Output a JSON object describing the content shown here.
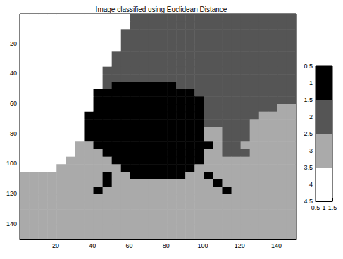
{
  "chart_data": {
    "type": "heatmap",
    "title": "Image classified using Euclidean Distance",
    "x": [
      3,
      8,
      13,
      18,
      23,
      28,
      33,
      38,
      43,
      48,
      53,
      58,
      63,
      68,
      73,
      78,
      83,
      88,
      93,
      98,
      103,
      108,
      113,
      118,
      123,
      128,
      133,
      138,
      143,
      148
    ],
    "y": [
      3,
      8,
      13,
      18,
      23,
      28,
      33,
      38,
      43,
      48,
      53,
      58,
      63,
      68,
      73,
      78,
      83,
      88,
      93,
      98,
      103,
      108,
      113,
      118,
      123,
      128,
      133,
      138,
      143,
      148
    ],
    "xlim": [
      0.5,
      150.5
    ],
    "xticks": [
      20,
      40,
      60,
      80,
      100,
      120,
      140
    ],
    "ylim": [
      0.5,
      150.5
    ],
    "yticks": [
      20,
      40,
      60,
      80,
      100,
      120,
      140
    ],
    "cells": [
      [
        4,
        4,
        4,
        4,
        4,
        4,
        4,
        4,
        4,
        4,
        4,
        4,
        2,
        2,
        2,
        2,
        2,
        2,
        2,
        2,
        2,
        2,
        2,
        2,
        2,
        2,
        2,
        2,
        2,
        2
      ],
      [
        4,
        4,
        4,
        4,
        4,
        4,
        4,
        4,
        4,
        4,
        4,
        4,
        2,
        2,
        2,
        2,
        2,
        2,
        2,
        2,
        2,
        2,
        2,
        2,
        2,
        2,
        2,
        2,
        2,
        2
      ],
      [
        4,
        4,
        4,
        4,
        4,
        4,
        4,
        4,
        4,
        4,
        4,
        2,
        2,
        2,
        2,
        2,
        2,
        2,
        2,
        2,
        2,
        2,
        2,
        2,
        2,
        2,
        2,
        2,
        2,
        2
      ],
      [
        4,
        4,
        4,
        4,
        4,
        4,
        4,
        4,
        4,
        4,
        4,
        2,
        2,
        2,
        2,
        2,
        2,
        2,
        2,
        2,
        2,
        2,
        2,
        2,
        2,
        2,
        2,
        2,
        2,
        2
      ],
      [
        4,
        4,
        4,
        4,
        4,
        4,
        4,
        4,
        4,
        4,
        4,
        2,
        2,
        2,
        2,
        2,
        2,
        2,
        2,
        2,
        2,
        2,
        2,
        2,
        2,
        2,
        2,
        2,
        2,
        2
      ],
      [
        4,
        4,
        4,
        4,
        4,
        4,
        4,
        4,
        4,
        4,
        2,
        2,
        2,
        2,
        2,
        2,
        2,
        2,
        2,
        2,
        2,
        2,
        2,
        2,
        2,
        2,
        2,
        2,
        2,
        2
      ],
      [
        4,
        4,
        4,
        4,
        4,
        4,
        4,
        4,
        4,
        4,
        2,
        2,
        2,
        2,
        2,
        2,
        2,
        2,
        2,
        2,
        2,
        2,
        2,
        2,
        2,
        2,
        2,
        2,
        2,
        2
      ],
      [
        4,
        4,
        4,
        4,
        4,
        4,
        4,
        4,
        4,
        2,
        2,
        2,
        2,
        2,
        2,
        2,
        2,
        2,
        2,
        2,
        2,
        2,
        2,
        2,
        2,
        2,
        2,
        2,
        2,
        2
      ],
      [
        4,
        4,
        4,
        4,
        4,
        4,
        4,
        4,
        4,
        2,
        2,
        2,
        2,
        2,
        2,
        2,
        2,
        2,
        2,
        2,
        2,
        2,
        2,
        2,
        2,
        2,
        2,
        2,
        2,
        2
      ],
      [
        4,
        4,
        4,
        4,
        4,
        4,
        4,
        4,
        4,
        2,
        1,
        1,
        1,
        1,
        1,
        1,
        1,
        2,
        2,
        2,
        2,
        2,
        2,
        2,
        2,
        2,
        2,
        2,
        2,
        2
      ],
      [
        4,
        4,
        4,
        4,
        4,
        4,
        4,
        4,
        1,
        1,
        1,
        1,
        1,
        1,
        1,
        1,
        1,
        1,
        1,
        2,
        2,
        2,
        2,
        2,
        2,
        2,
        2,
        2,
        2,
        2
      ],
      [
        4,
        4,
        4,
        4,
        4,
        4,
        4,
        4,
        1,
        1,
        1,
        1,
        1,
        1,
        1,
        1,
        1,
        1,
        1,
        1,
        2,
        2,
        2,
        2,
        2,
        2,
        2,
        2,
        2,
        2
      ],
      [
        4,
        4,
        4,
        4,
        4,
        4,
        4,
        4,
        1,
        1,
        1,
        1,
        1,
        1,
        1,
        1,
        1,
        1,
        1,
        1,
        2,
        2,
        2,
        2,
        2,
        2,
        2,
        2,
        3,
        3
      ],
      [
        4,
        4,
        4,
        4,
        4,
        4,
        4,
        1,
        1,
        1,
        1,
        1,
        1,
        1,
        1,
        1,
        1,
        1,
        1,
        1,
        2,
        2,
        2,
        2,
        2,
        2,
        3,
        3,
        3,
        3
      ],
      [
        4,
        4,
        4,
        4,
        4,
        4,
        4,
        1,
        1,
        1,
        1,
        1,
        1,
        1,
        1,
        1,
        1,
        1,
        1,
        1,
        2,
        2,
        2,
        2,
        2,
        3,
        3,
        3,
        3,
        3
      ],
      [
        4,
        4,
        4,
        4,
        4,
        4,
        4,
        1,
        1,
        1,
        1,
        1,
        1,
        1,
        1,
        1,
        1,
        1,
        1,
        1,
        3,
        3,
        2,
        2,
        2,
        3,
        3,
        3,
        3,
        3
      ],
      [
        4,
        4,
        4,
        4,
        4,
        4,
        4,
        1,
        1,
        1,
        1,
        1,
        1,
        1,
        1,
        1,
        1,
        1,
        1,
        1,
        3,
        3,
        2,
        2,
        2,
        3,
        3,
        3,
        3,
        3
      ],
      [
        4,
        4,
        4,
        4,
        4,
        4,
        3,
        3,
        1,
        1,
        1,
        1,
        1,
        1,
        1,
        1,
        1,
        1,
        1,
        1,
        1,
        3,
        2,
        2,
        3,
        3,
        3,
        3,
        3,
        3
      ],
      [
        4,
        4,
        4,
        4,
        4,
        4,
        3,
        3,
        3,
        1,
        1,
        1,
        1,
        1,
        1,
        1,
        1,
        1,
        1,
        1,
        3,
        3,
        2,
        2,
        2,
        3,
        3,
        3,
        3,
        3
      ],
      [
        4,
        4,
        4,
        4,
        4,
        3,
        3,
        3,
        3,
        3,
        1,
        1,
        1,
        1,
        1,
        1,
        1,
        1,
        1,
        1,
        3,
        3,
        3,
        3,
        3,
        3,
        3,
        3,
        3,
        3
      ],
      [
        4,
        4,
        4,
        4,
        3,
        3,
        3,
        3,
        3,
        3,
        3,
        1,
        1,
        1,
        1,
        1,
        1,
        1,
        1,
        3,
        3,
        3,
        3,
        3,
        3,
        3,
        3,
        3,
        3,
        3
      ],
      [
        3,
        3,
        3,
        3,
        3,
        3,
        3,
        3,
        3,
        1,
        3,
        3,
        1,
        1,
        1,
        1,
        1,
        1,
        3,
        3,
        1,
        3,
        3,
        3,
        3,
        3,
        3,
        3,
        3,
        3
      ],
      [
        3,
        3,
        3,
        3,
        3,
        3,
        3,
        3,
        3,
        1,
        3,
        3,
        3,
        3,
        3,
        3,
        3,
        3,
        3,
        3,
        3,
        1,
        3,
        3,
        3,
        3,
        3,
        3,
        3,
        3
      ],
      [
        3,
        3,
        3,
        3,
        3,
        3,
        3,
        3,
        1,
        3,
        3,
        3,
        3,
        3,
        3,
        3,
        3,
        3,
        3,
        3,
        3,
        3,
        1,
        3,
        3,
        3,
        3,
        3,
        3,
        3
      ],
      [
        3,
        3,
        3,
        3,
        3,
        3,
        3,
        3,
        3,
        3,
        3,
        3,
        3,
        3,
        3,
        3,
        3,
        3,
        3,
        3,
        3,
        3,
        3,
        3,
        3,
        3,
        3,
        3,
        3,
        3
      ],
      [
        3,
        3,
        3,
        3,
        3,
        3,
        3,
        3,
        3,
        3,
        3,
        3,
        3,
        3,
        3,
        3,
        3,
        3,
        3,
        3,
        3,
        3,
        3,
        3,
        3,
        3,
        3,
        3,
        3,
        3
      ],
      [
        3,
        3,
        3,
        3,
        3,
        3,
        3,
        3,
        3,
        3,
        3,
        3,
        3,
        3,
        3,
        3,
        3,
        3,
        3,
        3,
        3,
        3,
        3,
        3,
        3,
        3,
        3,
        3,
        3,
        3
      ],
      [
        3,
        3,
        3,
        3,
        3,
        3,
        3,
        3,
        3,
        3,
        3,
        3,
        3,
        3,
        3,
        3,
        3,
        3,
        3,
        3,
        3,
        3,
        3,
        3,
        3,
        3,
        3,
        3,
        3,
        3
      ],
      [
        3,
        3,
        3,
        3,
        3,
        3,
        3,
        3,
        3,
        3,
        3,
        3,
        3,
        3,
        3,
        3,
        3,
        3,
        3,
        3,
        3,
        3,
        3,
        3,
        3,
        3,
        3,
        3,
        3,
        3
      ],
      [
        3,
        3,
        3,
        3,
        3,
        3,
        3,
        3,
        3,
        3,
        3,
        3,
        3,
        3,
        3,
        3,
        3,
        3,
        3,
        3,
        3,
        3,
        3,
        3,
        3,
        3,
        3,
        3,
        3,
        3
      ]
    ],
    "colorbar": {
      "values": [
        1,
        2,
        3,
        4
      ],
      "colors": [
        "#000000",
        "#555555",
        "#aaaaaa",
        "#ffffff"
      ],
      "xlim": [
        0.5,
        1.5
      ],
      "xticks": [
        0.5,
        1,
        1.5
      ],
      "ylim": [
        0.5,
        4.5
      ],
      "yticks": [
        0.5,
        1,
        1.5,
        2,
        2.5,
        3,
        3.5,
        4,
        4.5
      ]
    }
  }
}
